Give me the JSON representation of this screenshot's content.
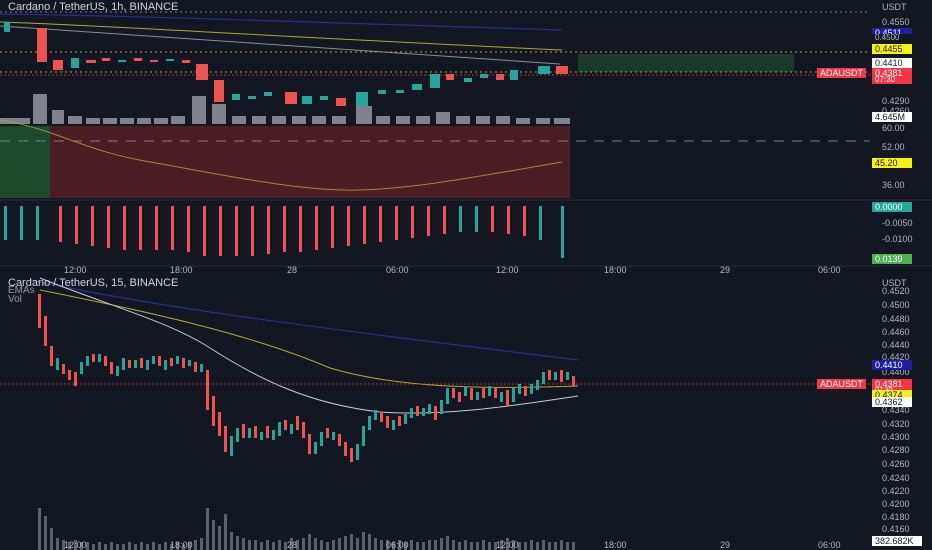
{
  "top_pane": {
    "title": "Cardano / TetherUS, 1h, BINANCE",
    "unit": "USDT",
    "price_ticks": [
      "0.4550",
      "0.4500",
      "0.4410",
      "0.4350",
      "0.4290",
      "0.4260"
    ],
    "rsi_ticks": [
      "60.00",
      "52.00",
      "36.00"
    ],
    "macd_ticks": [
      "-0.0050",
      "-0.0100"
    ],
    "price_tags": {
      "blue": "0.4511",
      "blue2": "0.4500",
      "yellow": "0.4455",
      "white": "0.4410",
      "last": "0.4381",
      "last_time": "07:30",
      "volume": "4.645M",
      "rsi": "45.20",
      "macd_zero": "0.0000",
      "macd_low": "0.0139"
    },
    "time_labels": [
      "12:00",
      "18:00",
      "28",
      "06:00",
      "12:00",
      "18:00",
      "29",
      "06:00"
    ],
    "colors": {
      "up": "#26a69a",
      "down": "#ef5350",
      "blue_ma": "#2a2e8a",
      "yellow_ma": "#b5a53a",
      "white_ma": "#d1d4dc"
    }
  },
  "bottom_pane": {
    "title": "Cardano / TetherUS, 15, BINANCE",
    "sub_labels": [
      "EMAs",
      "Vol"
    ],
    "unit": "USDT",
    "price_ticks": [
      "0.4520",
      "0.4500",
      "0.4480",
      "0.4460",
      "0.4440",
      "0.4420",
      "0.4400",
      "0.4340",
      "0.4320",
      "0.4300",
      "0.4280",
      "0.4260",
      "0.4240",
      "0.4220",
      "0.4200",
      "0.4180",
      "0.4160"
    ],
    "price_tags": {
      "blue": "0.4410",
      "last": "0.4381",
      "last_time": "07:30",
      "yellow": "0.4374",
      "white": "0.4362",
      "volume": "382.682K"
    },
    "time_labels": [
      "12:00",
      "18:00",
      "28",
      "06:00",
      "12:00",
      "18:00",
      "29",
      "06:00"
    ]
  },
  "symbol_label": "ADAUSDT"
}
